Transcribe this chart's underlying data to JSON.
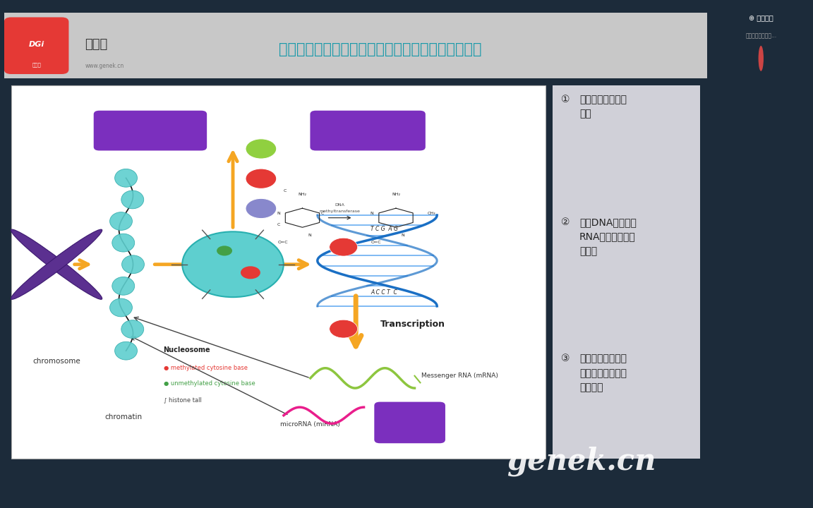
{
  "bg_outer": "#1c2b3a",
  "bg_slide": "#d8d8d8",
  "bg_header": "#d0d0d0",
  "bg_content_white": "#ffffff",
  "bg_right_panel": "#d8d8dc",
  "title_text": "什么是表观遗传学？它研究的是什么？有什么意义？",
  "title_color": "#1a9aaa",
  "title_fontsize": 15,
  "logo_bg": "#e53935",
  "watermark": "genek.cn",
  "bullet_items": [
    [
      "①",
      "与孟德尔遗传学不\n相符"
    ],
    [
      "②",
      "包括DNA甲基化、\nRNA干扰、组蛋白\n修饰等"
    ],
    [
      "③",
      "基因组相关功能改\n变而不涉及核苷酸\n序列变化"
    ]
  ],
  "histone_box_color": "#7b2fbe",
  "dna_meth_box_color": "#7b2fbe",
  "rna_box_color": "#7b2fbe",
  "arrow_yellow": "#f5a623",
  "teal_color": "#5ecfcf",
  "chrom_purple": "#5b3090",
  "dna_blue": "#1a6fc4",
  "mrna_green": "#8dc63f",
  "mirna_pink": "#e91e8c"
}
